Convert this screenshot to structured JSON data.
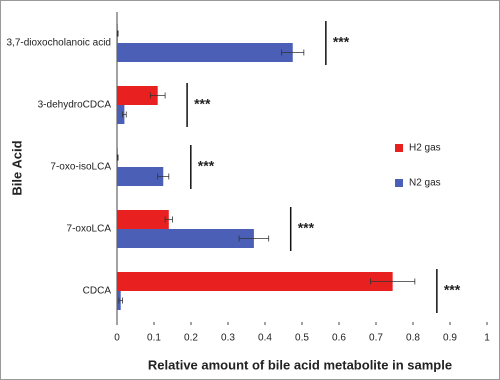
{
  "chart_data": {
    "type": "hbar",
    "categories": [
      "3,7-dioxocholanoic acid",
      "3-dehydroCDCA",
      "7-oxo-isoLCA",
      "7-oxoLCA",
      "CDCA"
    ],
    "series": [
      {
        "name": "H2 gas",
        "color": "#e8201f",
        "values": [
          0.002,
          0.11,
          0.002,
          0.14,
          0.745
        ],
        "errors": [
          0.001,
          0.02,
          0.001,
          0.01,
          0.06
        ]
      },
      {
        "name": "N2 gas",
        "color": "#4a5fb5",
        "values": [
          0.475,
          0.02,
          0.125,
          0.37,
          0.01
        ],
        "errors": [
          0.03,
          0.005,
          0.015,
          0.04,
          0.005
        ]
      }
    ],
    "significance": [
      "***",
      "***",
      "***",
      "***",
      "***"
    ],
    "xlabel": "Relative amount of bile acid metabolite in sample",
    "ylabel": "Bile Acid",
    "xlim": [
      0,
      1
    ],
    "xticks": [
      0,
      0.1,
      0.2,
      0.3,
      0.4,
      0.5,
      0.6,
      0.7,
      0.8,
      0.9,
      1
    ],
    "legend": "right"
  }
}
